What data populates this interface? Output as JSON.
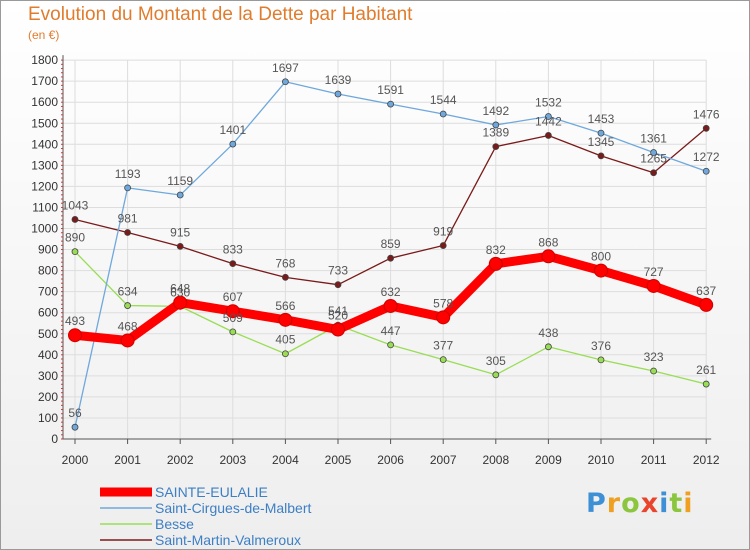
{
  "chart_data": {
    "type": "line",
    "title": "Evolution du Montant de la Dette par Habitant",
    "subtitle": "(en €)",
    "xlabel": "",
    "ylabel": "",
    "x": [
      "2000",
      "2001",
      "2002",
      "2003",
      "2004",
      "2005",
      "2006",
      "2007",
      "2008",
      "2009",
      "2010",
      "2011",
      "2012"
    ],
    "ylim": [
      0,
      1800
    ],
    "yticks": [
      "0",
      "100",
      "200",
      "300",
      "400",
      "500",
      "600",
      "700",
      "800",
      "900",
      "1000",
      "1100",
      "1200",
      "1300",
      "1400",
      "1500",
      "1600",
      "1700",
      "1800"
    ],
    "grid": true,
    "legend": "bottom-left",
    "series": [
      {
        "name": "SAINTE-EULALIE",
        "color": "#ff0000",
        "values": [
          493,
          468,
          648,
          607,
          566,
          520,
          632,
          578,
          832,
          868,
          800,
          727,
          637
        ],
        "labels": [
          "493",
          "468",
          "648",
          "607",
          "566",
          "520",
          "632",
          "578",
          "832",
          "868",
          "800",
          "727",
          "637"
        ]
      },
      {
        "name": "Saint-Cirgues-de-Malbert",
        "color": "#6fa8dc",
        "values": [
          56,
          1193,
          1159,
          1401,
          1697,
          1639,
          1591,
          1544,
          1492,
          1532,
          1453,
          1361,
          1272
        ],
        "labels": [
          "56",
          "1193",
          "1159",
          "1401",
          "1697",
          "1639",
          "1591",
          "1544",
          "1492",
          "1532",
          "1453",
          "1361",
          "1272"
        ]
      },
      {
        "name": "Besse",
        "color": "#99dd55",
        "values": [
          890,
          634,
          630,
          509,
          405,
          541,
          447,
          377,
          305,
          438,
          376,
          323,
          261
        ],
        "labels": [
          "890",
          "634",
          "630",
          "509",
          "405",
          "541",
          "447",
          "377",
          "305",
          "438",
          "376",
          "323",
          "261"
        ]
      },
      {
        "name": "Saint-Martin-Valmeroux",
        "color": "#7a1a1a",
        "values": [
          1043,
          981,
          915,
          833,
          768,
          733,
          859,
          919,
          1389,
          1442,
          1345,
          1265,
          1476
        ],
        "labels": [
          "1043",
          "981",
          "915",
          "833",
          "768",
          "733",
          "859",
          "919",
          "1389",
          "1442",
          "1345",
          "1265",
          "1476"
        ]
      }
    ]
  },
  "logo": {
    "text": [
      "P",
      "r",
      "o",
      "x",
      "i",
      "t",
      "i"
    ],
    "colors": [
      "#3d8fd6",
      "#f0a020",
      "#8cc63f",
      "#e8452c",
      "#3d8fd6",
      "#8cc63f",
      "#f0a020"
    ]
  }
}
